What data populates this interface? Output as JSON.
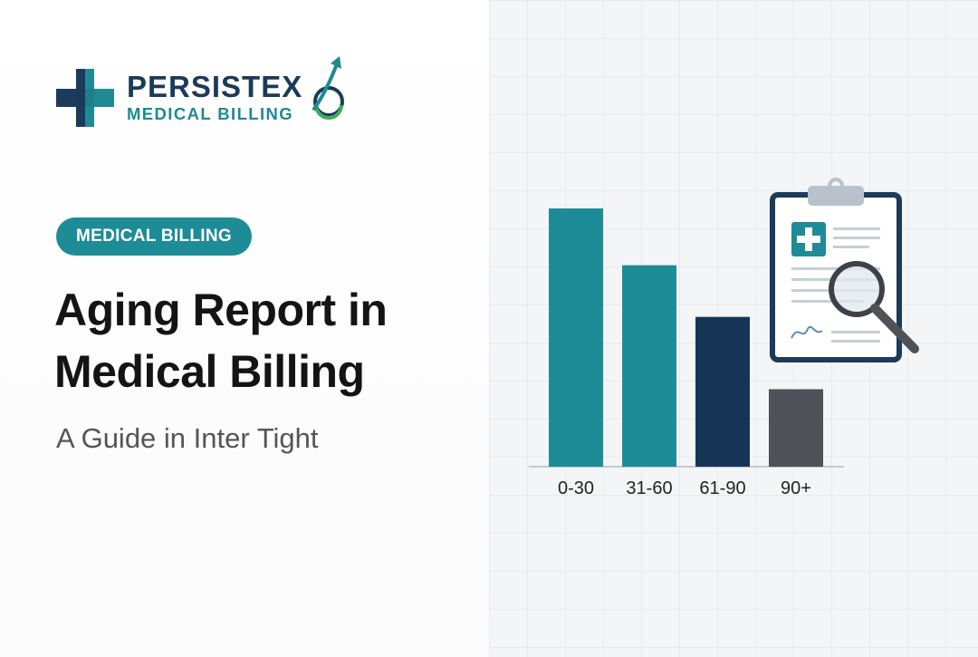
{
  "logo": {
    "name": "PERSISTEX",
    "subtitle": "MEDICAL BILLING"
  },
  "badge": {
    "label": "MEDICAL BILLING"
  },
  "headline": {
    "line1": "Aging Report in",
    "line2": "Medical Billing"
  },
  "subtitle": "A Guide in Inter Tight",
  "colors": {
    "teal": "#1e8c96",
    "navy": "#163556",
    "gray": "#4e5258",
    "text": "#141414"
  },
  "chart_data": {
    "type": "bar",
    "categories": [
      "0-30",
      "31-60",
      "61-90",
      "90+"
    ],
    "values": [
      100,
      78,
      58,
      30
    ],
    "bar_colors": [
      "#1e8c96",
      "#1e8c96",
      "#163556",
      "#4e5258"
    ],
    "title": "",
    "xlabel": "",
    "ylabel": "",
    "ylim": [
      0,
      100
    ],
    "grid": false,
    "legend": "none"
  },
  "illustration": {
    "icons": [
      "clipboard-icon",
      "medical-cross-icon",
      "magnifying-glass-icon",
      "signature-icon"
    ]
  }
}
